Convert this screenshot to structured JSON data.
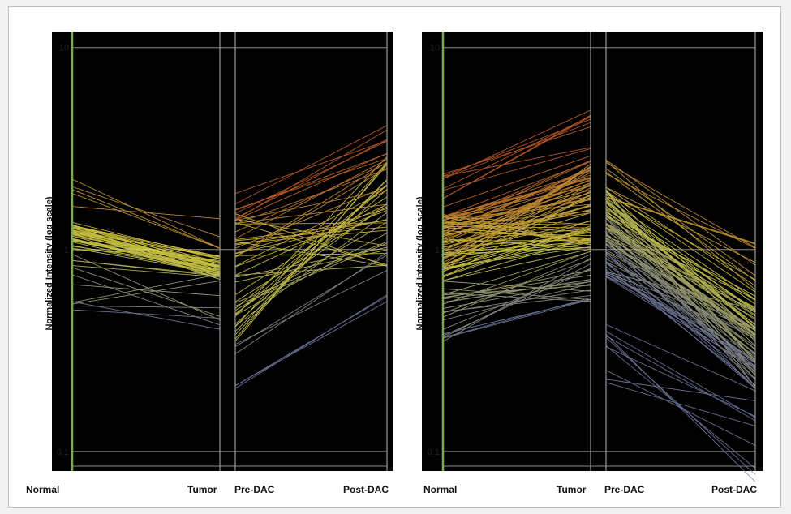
{
  "chart_data": [
    {
      "type": "line",
      "subtype": "parallel-coordinates",
      "ylabel": "Normalized Intensity (log scale)",
      "yscale": "log",
      "ylim": [
        0.08,
        12
      ],
      "yticks": [
        "10",
        "1",
        "0.1"
      ],
      "groups": [
        {
          "categories": [
            "Normal",
            "Tumor"
          ]
        },
        {
          "categories": [
            "Pre-DAC",
            "Post-DAC"
          ]
        }
      ],
      "background": "#000000",
      "colors": {
        "high": "#d2652c",
        "mid": "#e8e24a",
        "low": "#7b84b0",
        "green": "#7fa75a"
      },
      "bands": [
        {
          "group": 0,
          "from": [
            1.0,
            1.35
          ],
          "to": [
            0.7,
            0.95
          ],
          "count": 40
        },
        {
          "group": 0,
          "from": [
            0.5,
            0.95
          ],
          "to": [
            0.38,
            0.8
          ],
          "count": 12
        },
        {
          "group": 0,
          "from": [
            1.3,
            2.4
          ],
          "to": [
            0.9,
            1.5
          ],
          "count": 6
        },
        {
          "group": 1,
          "from": [
            0.35,
            1.6
          ],
          "to": [
            0.8,
            3.0
          ],
          "count": 45
        },
        {
          "group": 1,
          "from": [
            0.2,
            0.4
          ],
          "to": [
            0.55,
            1.0
          ],
          "count": 6
        },
        {
          "group": 1,
          "from": [
            1.3,
            1.9
          ],
          "to": [
            2.8,
            4.6
          ],
          "count": 6
        }
      ]
    },
    {
      "type": "line",
      "subtype": "parallel-coordinates",
      "ylabel": "Normalized Intensity (log scale)",
      "yscale": "log",
      "ylim": [
        0.08,
        12
      ],
      "yticks": [
        "10",
        "1",
        "0.1"
      ],
      "groups": [
        {
          "categories": [
            "Normal",
            "Tumor"
          ]
        },
        {
          "categories": [
            "Pre-DAC",
            "Post-DAC"
          ]
        }
      ],
      "background": "#000000",
      "colors": {
        "high": "#d2652c",
        "mid": "#e8e24a",
        "low": "#7b84b0",
        "green": "#7fa75a"
      },
      "bands": [
        {
          "group": 0,
          "from": [
            0.7,
            1.5
          ],
          "to": [
            1.0,
            2.8
          ],
          "count": 80
        },
        {
          "group": 0,
          "from": [
            0.35,
            0.7
          ],
          "to": [
            0.55,
            1.0
          ],
          "count": 25
        },
        {
          "group": 0,
          "from": [
            1.6,
            2.5
          ],
          "to": [
            2.6,
            5.0
          ],
          "count": 10
        },
        {
          "group": 1,
          "from": [
            0.7,
            2.0
          ],
          "to": [
            0.2,
            0.6
          ],
          "count": 80
        },
        {
          "group": 1,
          "from": [
            1.8,
            2.8
          ],
          "to": [
            0.6,
            1.2
          ],
          "count": 12
        },
        {
          "group": 1,
          "from": [
            0.2,
            0.45
          ],
          "to": [
            0.07,
            0.2
          ],
          "count": 10
        }
      ]
    }
  ]
}
